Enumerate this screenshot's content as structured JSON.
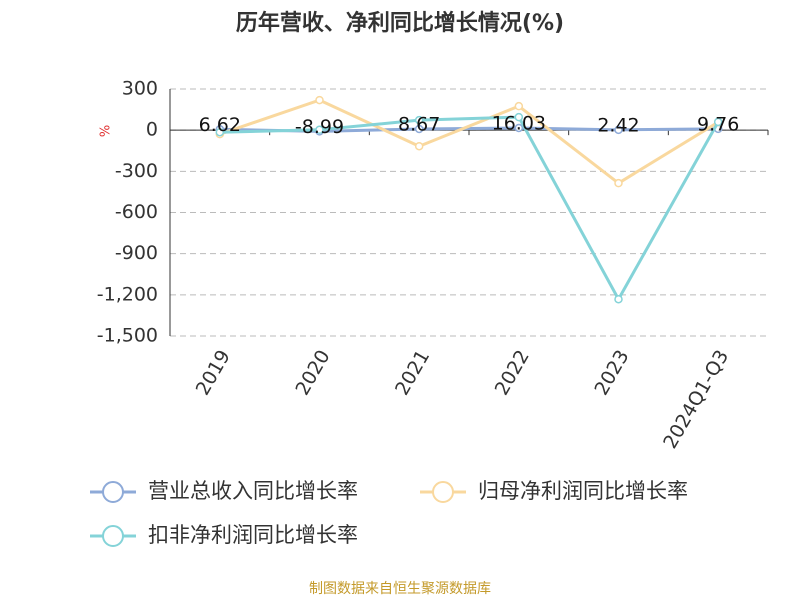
{
  "chart_data": {
    "type": "line",
    "title": "历年营收、净利同比增长情况(%)",
    "y_label": "%",
    "categories": [
      "2019",
      "2020",
      "2021",
      "2022",
      "2023",
      "2024Q1-Q3"
    ],
    "series": [
      {
        "name": "营业总收入同比增长率",
        "color": "#8eaad8",
        "values": [
          6.62,
          -8.99,
          8.67,
          16.03,
          2.42,
          9.76
        ],
        "data_labels": true
      },
      {
        "name": "归母净利润同比增长率",
        "color": "#f9d89e",
        "values": [
          -29,
          219,
          -117,
          175,
          -386,
          58
        ],
        "data_labels": false
      },
      {
        "name": "扣非净利润同比增长率",
        "color": "#84d3d8",
        "values": [
          -15,
          3,
          73,
          95,
          -1232,
          60
        ],
        "data_labels": false
      }
    ],
    "ylim": [
      -1500,
      300
    ],
    "yticks": [
      300,
      0,
      -300,
      -600,
      -900,
      {
        "value": -1200,
        "label": "-1,200"
      },
      {
        "value": -1500,
        "label": "-1,500"
      }
    ],
    "grid": true,
    "source": "制图数据来自恒生聚源数据库"
  }
}
